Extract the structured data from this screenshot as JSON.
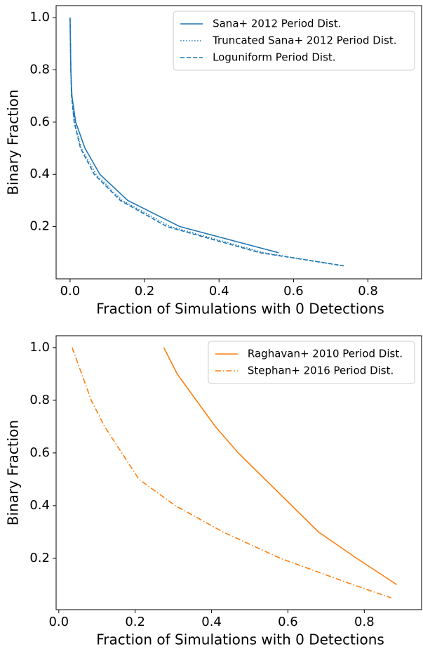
{
  "chart_data": [
    {
      "type": "line",
      "xlabel": "Fraction of Simulations with 0 Detections",
      "ylabel": "Binary Fraction",
      "xlim": [
        -0.0375,
        0.944
      ],
      "ylim": [
        0.0,
        1.046
      ],
      "xticks": [
        {
          "value": 0,
          "label": "0.0"
        },
        0.2,
        0.4,
        0.6,
        0.8
      ],
      "yticks": [
        0.2,
        0.4,
        0.6,
        0.8,
        {
          "value": 1,
          "label": "1.0"
        }
      ],
      "legend": "upper right",
      "series": [
        {
          "name": "Sana+ 2012 Period Dist.",
          "color": "#1f77b4",
          "linestyle": "solid",
          "x": [
            0.0,
            0.001,
            0.002,
            0.005,
            0.015,
            0.04,
            0.08,
            0.155,
            0.295,
            0.56
          ],
          "values": [
            1.0,
            0.9,
            0.8,
            0.7,
            0.6,
            0.5,
            0.4,
            0.3,
            0.2,
            0.1
          ]
        },
        {
          "name": "Truncated Sana+ 2012 Period Dist.",
          "color": "#1f77b4",
          "linestyle": "dotted",
          "x": [
            0.001,
            0.002,
            0.004,
            0.012,
            0.03,
            0.07,
            0.14,
            0.27,
            0.52,
            0.73
          ],
          "values": [
            0.9,
            0.8,
            0.7,
            0.6,
            0.5,
            0.4,
            0.3,
            0.2,
            0.1,
            0.05
          ]
        },
        {
          "name": "Loguniform Period Dist.",
          "color": "#1f77b4",
          "linestyle": "dashed",
          "x": [
            0.0,
            0.001,
            0.002,
            0.004,
            0.011,
            0.028,
            0.065,
            0.135,
            0.26,
            0.51,
            0.735
          ],
          "values": [
            1.0,
            0.9,
            0.8,
            0.7,
            0.6,
            0.5,
            0.4,
            0.3,
            0.2,
            0.1,
            0.05
          ]
        }
      ]
    },
    {
      "type": "line",
      "xlabel": "Fraction of Simulations with 0 Detections",
      "ylabel": "Binary Fraction",
      "xlim": [
        -0.007,
        0.95
      ],
      "ylim": [
        0.005,
        1.045
      ],
      "xticks": [
        {
          "value": 0,
          "label": "0.0"
        },
        0.2,
        0.4,
        0.6,
        0.8
      ],
      "yticks": [
        0.2,
        0.4,
        0.6,
        0.8,
        {
          "value": 1,
          "label": "1.0"
        }
      ],
      "legend": "upper right",
      "series": [
        {
          "name": "Raghavan+ 2010 Period Dist.",
          "color": "#ff7f0e",
          "linestyle": "solid",
          "x": [
            0.275,
            0.31,
            0.36,
            0.41,
            0.47,
            0.54,
            0.61,
            0.68,
            0.78,
            0.885
          ],
          "values": [
            1.0,
            0.9,
            0.8,
            0.7,
            0.6,
            0.5,
            0.4,
            0.3,
            0.2,
            0.1
          ]
        },
        {
          "name": "Stephan+ 2016 Period Dist.",
          "color": "#ff7f0e",
          "linestyle": "dashdot",
          "x": [
            0.035,
            0.06,
            0.085,
            0.12,
            0.165,
            0.21,
            0.305,
            0.43,
            0.58,
            0.77,
            0.87
          ],
          "values": [
            1.0,
            0.9,
            0.8,
            0.7,
            0.6,
            0.5,
            0.4,
            0.3,
            0.2,
            0.1,
            0.05
          ]
        }
      ]
    }
  ]
}
